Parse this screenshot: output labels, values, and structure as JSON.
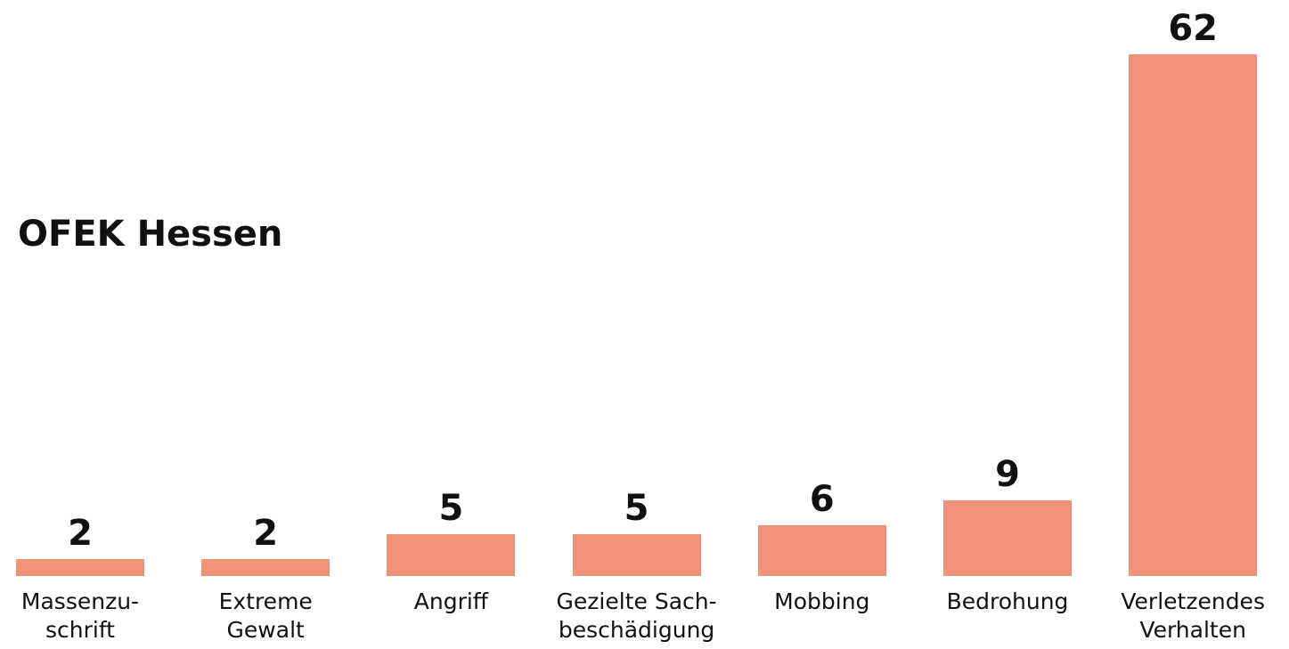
{
  "chart_data": {
    "type": "bar",
    "title": "OFEK Hessen",
    "categories": [
      "Massenzu-\nschrift",
      "Extreme\nGewalt",
      "Angriff",
      "Gezielte Sach-\nbeschädigung",
      "Mobbing",
      "Bedrohung",
      "Verletzendes\nVerhalten"
    ],
    "values": [
      2,
      2,
      5,
      5,
      6,
      9,
      62
    ],
    "color": "#f0917a"
  }
}
